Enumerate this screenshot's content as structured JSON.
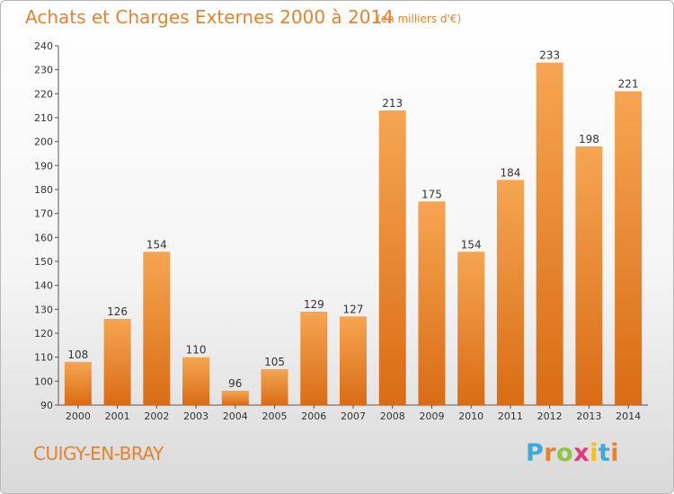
{
  "header": {
    "title": "Achats et Charges Externes 2000 à 2014",
    "unit": "(en milliers d'€)"
  },
  "footer": {
    "city": "CUIGY-EN-BRAY",
    "logo": {
      "letters": [
        "P",
        "r",
        "o",
        "x",
        "i",
        "t",
        "i"
      ],
      "colors": [
        "#3fa9d8",
        "#e8822c",
        "#8cc63f",
        "#e23a7c",
        "#f2c21b",
        "#3fa9d8",
        "#e8822c"
      ]
    }
  },
  "chart_data": {
    "type": "bar",
    "title": "Achats et Charges Externes 2000 à 2014",
    "xlabel": "",
    "ylabel": "",
    "categories": [
      "2000",
      "2001",
      "2002",
      "2003",
      "2004",
      "2005",
      "2006",
      "2007",
      "2008",
      "2009",
      "2010",
      "2011",
      "2012",
      "2013",
      "2014"
    ],
    "values": [
      108,
      126,
      154,
      110,
      96,
      105,
      129,
      127,
      213,
      175,
      154,
      184,
      233,
      198,
      221
    ],
    "ylim": [
      90,
      240
    ],
    "yticks": [
      90,
      100,
      110,
      120,
      130,
      140,
      150,
      160,
      170,
      180,
      190,
      200,
      210,
      220,
      230,
      240
    ],
    "grid": false,
    "bar_color_light": "#f6a552",
    "bar_color_dark": "#d96c14",
    "show_value_labels": true
  }
}
